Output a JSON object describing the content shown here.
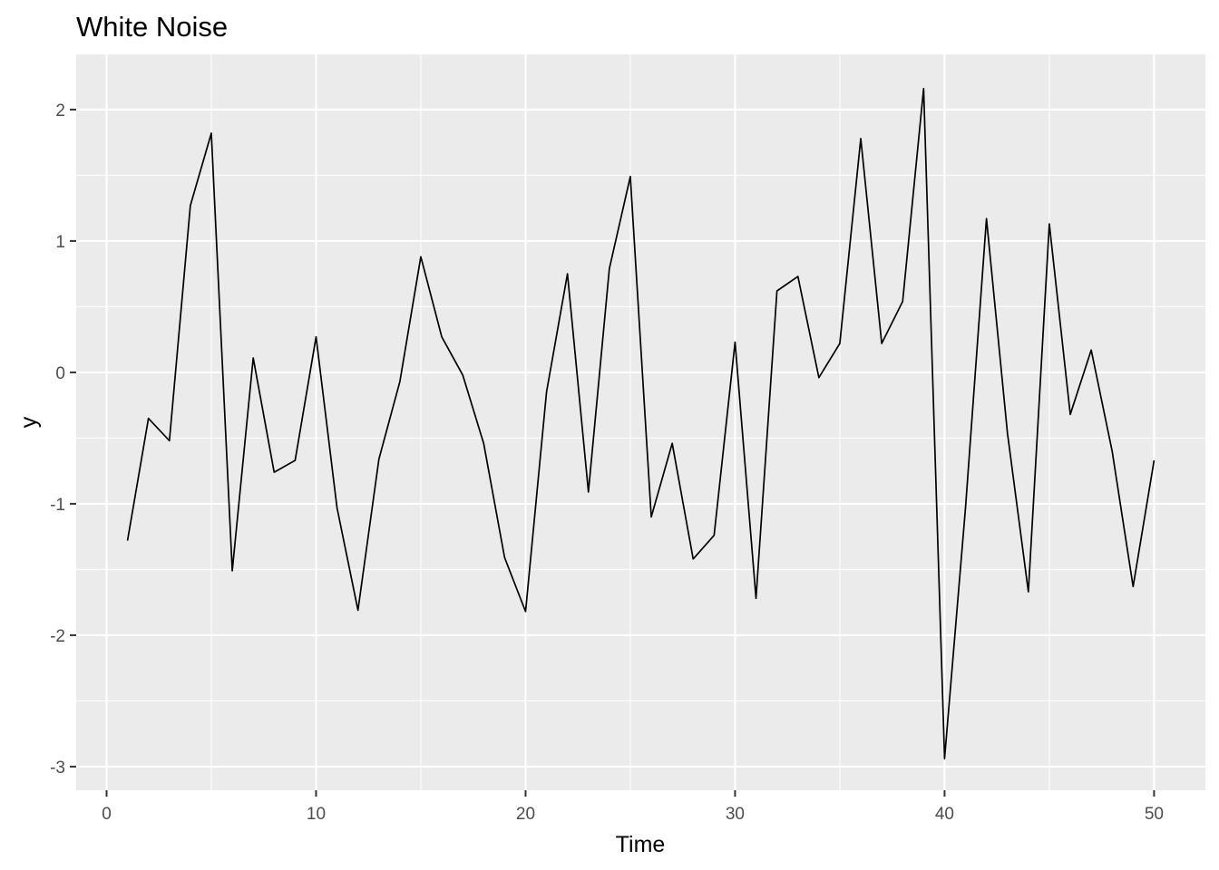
{
  "chart_data": {
    "type": "line",
    "title": "White Noise",
    "xlabel": "Time",
    "ylabel": "y",
    "xlim": [
      -1.45,
      52.45
    ],
    "ylim": [
      -3.18,
      2.42
    ],
    "x_ticks": [
      0,
      10,
      20,
      30,
      40,
      50
    ],
    "x_tick_labels": [
      "0",
      "10",
      "20",
      "30",
      "40",
      "50"
    ],
    "y_ticks": [
      -3,
      -2,
      -1,
      0,
      1,
      2
    ],
    "y_tick_labels": [
      "-3",
      "-2",
      "-1",
      "0",
      "1",
      "2"
    ],
    "grid": true,
    "legend": "none",
    "colors": {
      "panel": "#ebebeb",
      "grid": "#ffffff",
      "line": "#000000",
      "tick_text": "#4d4d4d"
    },
    "series": [
      {
        "x": [
          1,
          2,
          3,
          4,
          5,
          6,
          7,
          8,
          9,
          10,
          11,
          12,
          13,
          14,
          15,
          16,
          17,
          18,
          19,
          20,
          21,
          22,
          23,
          24,
          25,
          26,
          27,
          28,
          29,
          30,
          31,
          32,
          33,
          34,
          35,
          36,
          37,
          38,
          39,
          40,
          41,
          42,
          43,
          44,
          45,
          46,
          47,
          48,
          49,
          50
        ],
        "values": [
          -1.28,
          -0.35,
          -0.52,
          1.27,
          1.82,
          -1.51,
          0.11,
          -0.76,
          -0.67,
          0.27,
          -1.03,
          -1.81,
          -0.66,
          -0.07,
          0.88,
          0.27,
          -0.02,
          -0.54,
          -1.41,
          -1.82,
          -0.15,
          0.75,
          -0.91,
          0.79,
          1.49,
          -1.1,
          -0.54,
          -1.42,
          -1.24,
          0.23,
          -1.72,
          0.62,
          0.73,
          -0.04,
          0.22,
          1.78,
          0.22,
          0.54,
          2.16,
          -2.94,
          -1.03,
          1.17,
          -0.46,
          -1.67,
          1.13,
          -0.32,
          0.17,
          -0.6,
          -1.63,
          -0.67
        ]
      }
    ]
  }
}
